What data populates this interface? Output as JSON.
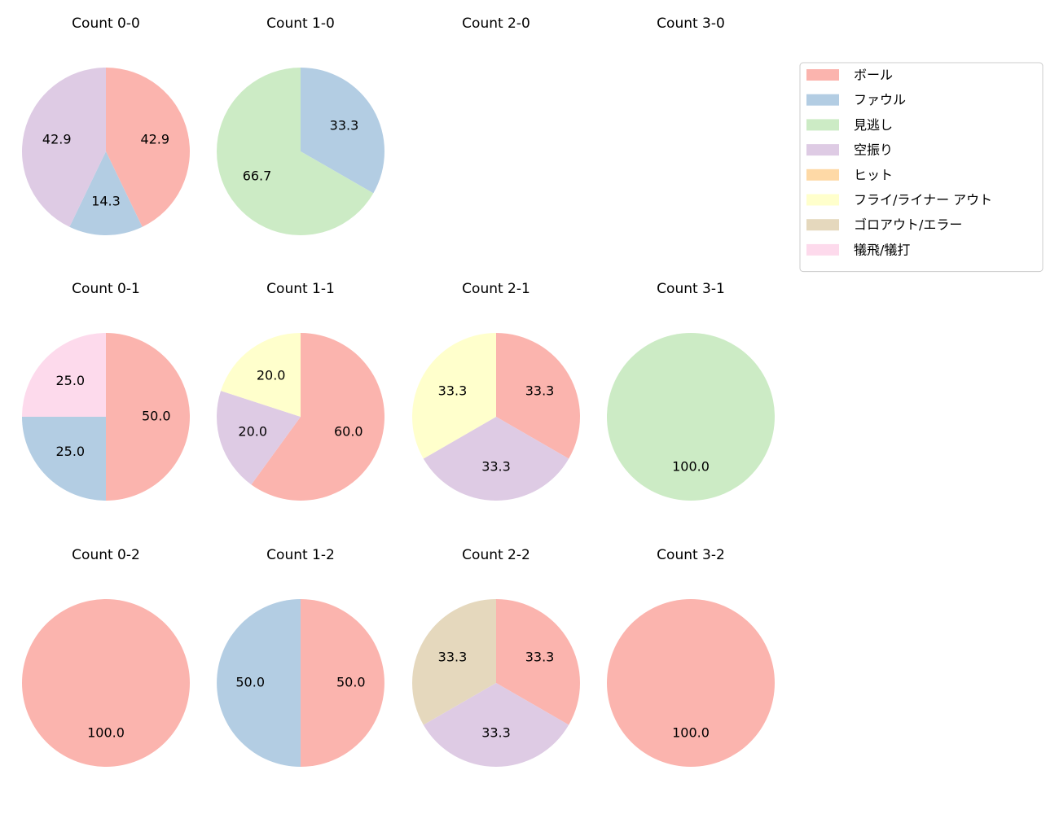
{
  "chart_data": [
    {
      "type": "pie",
      "title": "Count 0-0",
      "values": [
        42.9,
        14.3,
        42.9
      ],
      "value_labels": [
        "42.9",
        "14.3",
        "42.9"
      ],
      "colors": [
        "#fbb4ae",
        "#b3cde3",
        "#decbe4"
      ]
    },
    {
      "type": "pie",
      "title": "Count 1-0",
      "values": [
        33.3,
        66.7
      ],
      "value_labels": [
        "33.3",
        "66.7"
      ],
      "colors": [
        "#b3cde3",
        "#ccebc5"
      ]
    },
    {
      "type": "pie",
      "title": "Count 2-0",
      "values": [],
      "value_labels": [],
      "colors": []
    },
    {
      "type": "pie",
      "title": "Count 3-0",
      "values": [],
      "value_labels": [],
      "colors": []
    },
    {
      "type": "pie",
      "title": "Count 0-1",
      "values": [
        50,
        25,
        25
      ],
      "value_labels": [
        "50.0",
        "25.0",
        "25.0"
      ],
      "colors": [
        "#fbb4ae",
        "#b3cde3",
        "#fddaec"
      ]
    },
    {
      "type": "pie",
      "title": "Count 1-1",
      "values": [
        60,
        20,
        20
      ],
      "value_labels": [
        "60.0",
        "20.0",
        "20.0"
      ],
      "colors": [
        "#fbb4ae",
        "#decbe4",
        "#ffffcc"
      ]
    },
    {
      "type": "pie",
      "title": "Count 2-1",
      "values": [
        33.3,
        33.3,
        33.3
      ],
      "value_labels": [
        "33.3",
        "33.3",
        "33.3"
      ],
      "colors": [
        "#fbb4ae",
        "#decbe4",
        "#ffffcc"
      ]
    },
    {
      "type": "pie",
      "title": "Count 3-1",
      "values": [
        100
      ],
      "value_labels": [
        "100.0"
      ],
      "colors": [
        "#ccebc5"
      ]
    },
    {
      "type": "pie",
      "title": "Count 0-2",
      "values": [
        100
      ],
      "value_labels": [
        "100.0"
      ],
      "colors": [
        "#fbb4ae"
      ]
    },
    {
      "type": "pie",
      "title": "Count 1-2",
      "values": [
        50,
        50
      ],
      "value_labels": [
        "50.0",
        "50.0"
      ],
      "colors": [
        "#fbb4ae",
        "#b3cde3"
      ]
    },
    {
      "type": "pie",
      "title": "Count 2-2",
      "values": [
        33.3,
        33.3,
        33.3
      ],
      "value_labels": [
        "33.3",
        "33.3",
        "33.3"
      ],
      "colors": [
        "#fbb4ae",
        "#decbe4",
        "#e5d8bd"
      ]
    },
    {
      "type": "pie",
      "title": "Count 3-2",
      "values": [
        100
      ],
      "value_labels": [
        "100.0"
      ],
      "colors": [
        "#fbb4ae"
      ]
    }
  ],
  "legend": {
    "position": "upper right",
    "labels": [
      "ボール",
      "ファウル",
      "見逃し",
      "空振り",
      "ヒット",
      "フライ/ライナー アウト",
      "ゴロアウト/エラー",
      "犠飛/犠打"
    ],
    "colors": [
      "#fbb4ae",
      "#b3cde3",
      "#ccebc5",
      "#decbe4",
      "#fed9a6",
      "#ffffcc",
      "#e5d8bd",
      "#fddaec"
    ]
  }
}
